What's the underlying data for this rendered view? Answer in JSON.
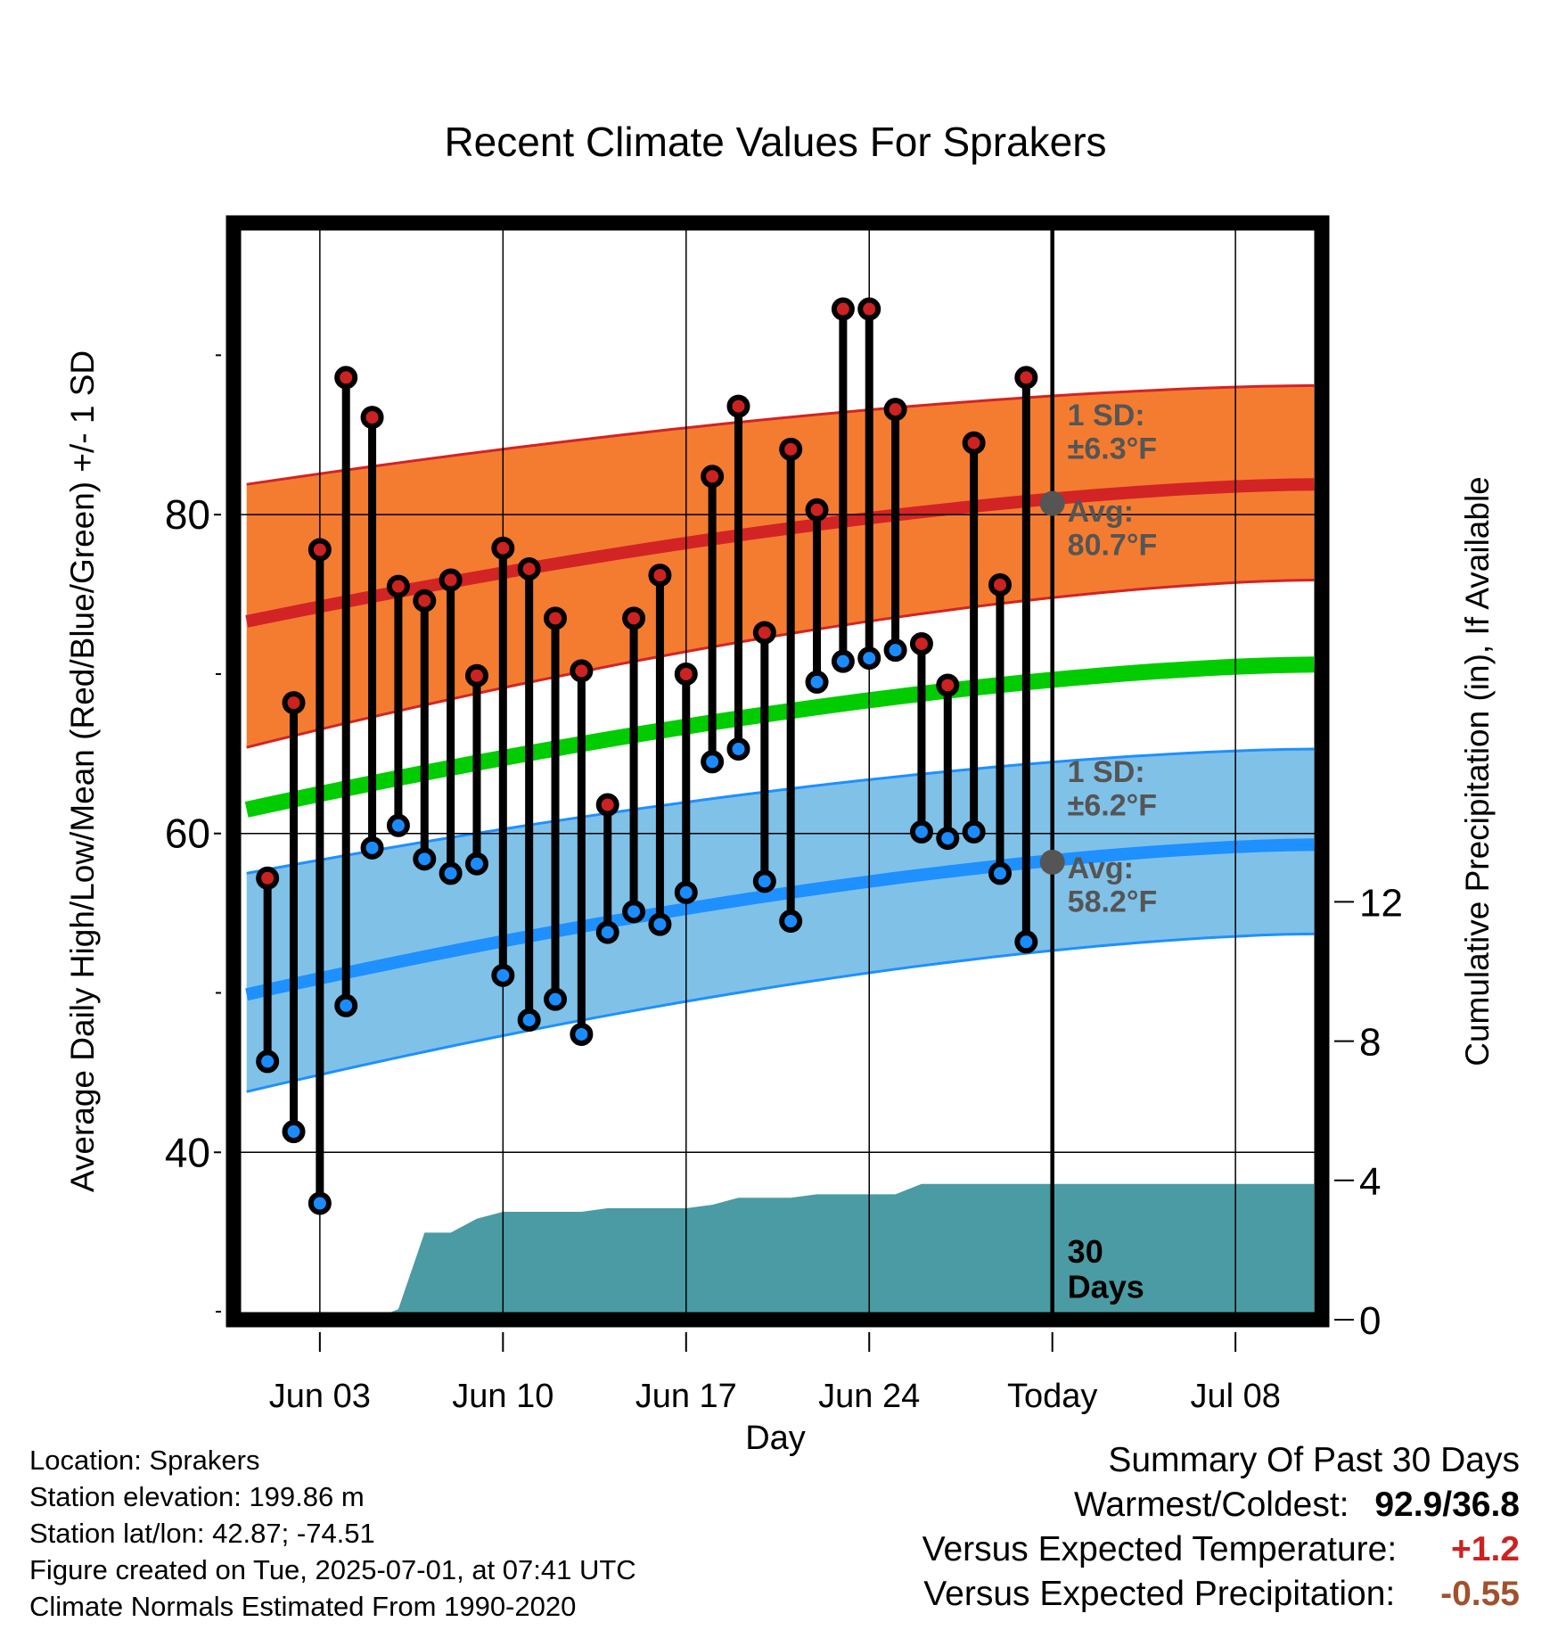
{
  "chart_data": {
    "type": "line",
    "title": "Recent Climate Values For Sprakers",
    "xlabel": "Day",
    "ylabel_left": "Average Daily High/Low/Mean (Red/Blue/Green) +/- 1 SD",
    "ylabel_right": "Cumulative Precipitation (in), If Available",
    "xlim": [
      -3.3,
      38.3
    ],
    "ylim_left": [
      29.5,
      98.3
    ],
    "ylim_right": [
      0,
      31.5
    ],
    "y_ticks_left": [
      40,
      60,
      80
    ],
    "y_minor_ticks_left": [
      30,
      50,
      70,
      90
    ],
    "y_ticks_right": [
      0,
      4,
      8,
      12
    ],
    "x_ticks": [
      {
        "pos": 0,
        "label": "Jun 03"
      },
      {
        "pos": 7,
        "label": "Jun 10"
      },
      {
        "pos": 14,
        "label": "Jun 17"
      },
      {
        "pos": 21,
        "label": "Jun 24"
      },
      {
        "pos": 28,
        "label": "Today"
      },
      {
        "pos": 35,
        "label": "Jul 08"
      }
    ],
    "today_pos": 28,
    "today_label": [
      "30",
      "Days"
    ],
    "grid": true,
    "normals": {
      "x": [
        -2.8,
        38
      ],
      "high_mean": [
        73.3,
        81.9
      ],
      "high_upper": [
        81.9,
        88.1
      ],
      "high_lower": [
        65.4,
        75.9
      ],
      "low_mean": [
        49.9,
        59.3
      ],
      "low_upper": [
        57.5,
        65.3
      ],
      "low_lower": [
        43.8,
        53.7
      ],
      "mean": [
        61.5,
        70.6
      ]
    },
    "high_stats": {
      "sd_label": [
        "1 SD:",
        "±6.3°F"
      ],
      "avg_label": [
        "Avg:",
        "80.7°F"
      ],
      "avg_value": 80.7
    },
    "low_stats": {
      "sd_label": [
        "1 SD:",
        "±6.2°F"
      ],
      "avg_label": [
        "Avg:",
        "58.2°F"
      ],
      "avg_value": 58.2
    },
    "days": [
      -2,
      -1,
      0,
      1,
      2,
      3,
      4,
      5,
      6,
      7,
      8,
      9,
      10,
      11,
      12,
      13,
      14,
      15,
      16,
      17,
      18,
      19,
      20,
      21,
      22,
      23,
      24,
      25,
      26,
      27
    ],
    "highs": [
      57.2,
      68.2,
      77.8,
      88.6,
      86.1,
      75.5,
      74.6,
      75.9,
      69.9,
      77.9,
      76.6,
      73.5,
      70.2,
      61.8,
      73.5,
      76.2,
      70.0,
      82.4,
      86.8,
      72.6,
      84.1,
      80.3,
      92.9,
      92.9,
      86.6,
      71.9,
      69.3,
      84.5,
      75.6,
      88.6
    ],
    "lows": [
      45.7,
      41.3,
      36.8,
      49.2,
      59.1,
      60.5,
      58.4,
      57.5,
      58.1,
      51.1,
      48.3,
      49.6,
      47.4,
      53.8,
      55.1,
      54.3,
      56.3,
      64.5,
      65.3,
      57.0,
      54.5,
      69.5,
      70.8,
      71.0,
      71.5,
      60.1,
      59.7,
      60.1,
      57.5,
      53.2
    ],
    "precip": {
      "x": [
        -2.8,
        0,
        2,
        3,
        4,
        5,
        6,
        7,
        8,
        9,
        10,
        11,
        12,
        13,
        14,
        15,
        16,
        17,
        18,
        19,
        20,
        21,
        22,
        23,
        24,
        25,
        26,
        27,
        28,
        38
      ],
      "values": [
        0,
        0,
        0,
        0.3,
        2.5,
        2.5,
        2.9,
        3.1,
        3.1,
        3.1,
        3.1,
        3.2,
        3.2,
        3.2,
        3.2,
        3.3,
        3.5,
        3.5,
        3.5,
        3.6,
        3.6,
        3.6,
        3.6,
        3.9,
        3.9,
        3.9,
        3.9,
        3.9,
        3.9,
        3.9
      ]
    },
    "colors": {
      "high_band": "#f47c30",
      "high_line": "#d22425",
      "low_band": "#80c1e8",
      "low_line": "#1e90ff",
      "mean_line": "#00cc00",
      "precip": "#4a9ba3",
      "high_dot": "#cc2222",
      "low_dot": "#1a8cff",
      "annotation": "#555555"
    }
  },
  "info": {
    "location": "Location: Sprakers",
    "elevation": "Station elevation: 199.86 m",
    "latlon": "Station lat/lon: 42.87; -74.51",
    "created": "Figure created on Tue, 2025-07-01, at 07:41 UTC",
    "normals": "Climate Normals Estimated From 1990-2020"
  },
  "summary": {
    "title": "Summary Of Past 30 Days",
    "warm_cold_label": "Warmest/Coldest:",
    "warm_cold_value": "92.9/36.8",
    "temp_label": "Versus Expected Temperature:",
    "temp_value": "+1.2",
    "temp_color": "#cc2222",
    "precip_label": "Versus Expected Precipitation:",
    "precip_value": "-0.55",
    "precip_color": "#a0522d"
  }
}
